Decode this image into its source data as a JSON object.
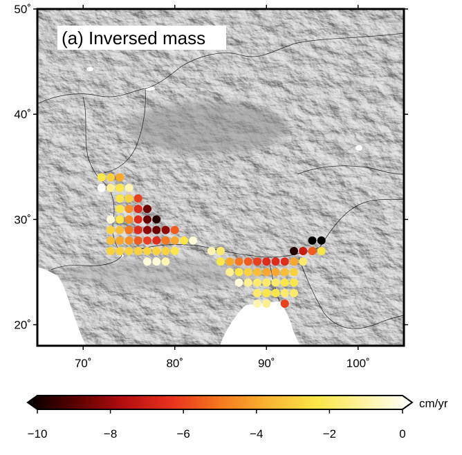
{
  "map": {
    "title": "(a) Inversed mass",
    "lon_range": [
      65,
      105
    ],
    "lat_range": [
      18,
      50
    ],
    "lon_ticks": [
      {
        "value": 70,
        "label": "70˚"
      },
      {
        "value": 80,
        "label": "80˚"
      },
      {
        "value": 90,
        "label": "90˚"
      },
      {
        "value": 100,
        "label": "100˚"
      }
    ],
    "lat_ticks": [
      {
        "value": 20,
        "label": "20˚"
      },
      {
        "value": 30,
        "label": "30˚"
      },
      {
        "value": 40,
        "label": "40˚"
      },
      {
        "value": 50,
        "label": "50˚"
      }
    ],
    "basemap": "shaded-relief-grayscale",
    "ocean_color": "#ffffff"
  },
  "colorbar": {
    "unit": "cm/yr",
    "min": -10,
    "max": 0,
    "ticks": [
      {
        "value": -10,
        "label": "−10"
      },
      {
        "value": -8,
        "label": "−8"
      },
      {
        "value": -6,
        "label": "−6"
      },
      {
        "value": -4,
        "label": "−4"
      },
      {
        "value": -2,
        "label": "−2"
      },
      {
        "value": 0,
        "label": "0"
      }
    ],
    "colors": [
      "#000000",
      "#5a0000",
      "#b40e0e",
      "#e8321e",
      "#f5781e",
      "#fab432",
      "#fae646",
      "#fff3a0",
      "#ffffff"
    ]
  },
  "chart_data": {
    "type": "scatter",
    "description_units": "lon, lat in degrees; value in cm/yr",
    "points": [
      {
        "lon": 72,
        "lat": 34,
        "v": -2.5
      },
      {
        "lon": 73,
        "lat": 34,
        "v": -3
      },
      {
        "lon": 74,
        "lat": 34,
        "v": -4
      },
      {
        "lon": 72,
        "lat": 33,
        "v": 0
      },
      {
        "lon": 73,
        "lat": 33,
        "v": -1.5
      },
      {
        "lon": 74,
        "lat": 33,
        "v": -2.5
      },
      {
        "lon": 75,
        "lat": 33,
        "v": -1
      },
      {
        "lon": 74,
        "lat": 32,
        "v": -2.5
      },
      {
        "lon": 75,
        "lat": 32,
        "v": -3
      },
      {
        "lon": 76,
        "lat": 32,
        "v": -6
      },
      {
        "lon": 74,
        "lat": 31,
        "v": -2.5
      },
      {
        "lon": 75,
        "lat": 31,
        "v": -4.5
      },
      {
        "lon": 76,
        "lat": 31,
        "v": -6.5
      },
      {
        "lon": 77,
        "lat": 31,
        "v": -8.5
      },
      {
        "lon": 73,
        "lat": 30,
        "v": -0.5
      },
      {
        "lon": 74,
        "lat": 30,
        "v": -2.5
      },
      {
        "lon": 75,
        "lat": 30,
        "v": -4.5
      },
      {
        "lon": 76,
        "lat": 30,
        "v": -6.5
      },
      {
        "lon": 77,
        "lat": 30,
        "v": -8.5
      },
      {
        "lon": 78,
        "lat": 30,
        "v": -9.5
      },
      {
        "lon": 73,
        "lat": 29,
        "v": -3
      },
      {
        "lon": 74,
        "lat": 29,
        "v": -3.5
      },
      {
        "lon": 75,
        "lat": 29,
        "v": -5
      },
      {
        "lon": 76,
        "lat": 29,
        "v": -6.5
      },
      {
        "lon": 77,
        "lat": 29,
        "v": -8
      },
      {
        "lon": 78,
        "lat": 29,
        "v": -8.5
      },
      {
        "lon": 79,
        "lat": 29,
        "v": -8
      },
      {
        "lon": 80,
        "lat": 29,
        "v": -5.5
      },
      {
        "lon": 73,
        "lat": 28,
        "v": -3.5
      },
      {
        "lon": 74,
        "lat": 28,
        "v": -4
      },
      {
        "lon": 75,
        "lat": 28,
        "v": -4.5
      },
      {
        "lon": 76,
        "lat": 28,
        "v": -5.5
      },
      {
        "lon": 77,
        "lat": 28,
        "v": -6
      },
      {
        "lon": 78,
        "lat": 28,
        "v": -6.5
      },
      {
        "lon": 79,
        "lat": 28,
        "v": -5
      },
      {
        "lon": 80,
        "lat": 28,
        "v": -4
      },
      {
        "lon": 81,
        "lat": 28,
        "v": -2.5
      },
      {
        "lon": 82,
        "lat": 28,
        "v": -0.5
      },
      {
        "lon": 73,
        "lat": 27,
        "v": -3
      },
      {
        "lon": 74,
        "lat": 27,
        "v": -3
      },
      {
        "lon": 75,
        "lat": 27,
        "v": -3
      },
      {
        "lon": 76,
        "lat": 27,
        "v": -3
      },
      {
        "lon": 77,
        "lat": 27,
        "v": -3
      },
      {
        "lon": 78,
        "lat": 27,
        "v": -3
      },
      {
        "lon": 79,
        "lat": 27,
        "v": -3
      },
      {
        "lon": 80,
        "lat": 27,
        "v": -2.5
      },
      {
        "lon": 77,
        "lat": 26,
        "v": -0.5
      },
      {
        "lon": 78,
        "lat": 26,
        "v": -0.5
      },
      {
        "lon": 79,
        "lat": 26,
        "v": -1
      },
      {
        "lon": 84,
        "lat": 27,
        "v": -1
      },
      {
        "lon": 85,
        "lat": 27,
        "v": -2
      },
      {
        "lon": 85,
        "lat": 26,
        "v": -2.5
      },
      {
        "lon": 86,
        "lat": 26,
        "v": -4
      },
      {
        "lon": 87,
        "lat": 26,
        "v": -5
      },
      {
        "lon": 88,
        "lat": 26,
        "v": -5.5
      },
      {
        "lon": 89,
        "lat": 26,
        "v": -6
      },
      {
        "lon": 90,
        "lat": 26,
        "v": -6.5
      },
      {
        "lon": 91,
        "lat": 26,
        "v": -6.5
      },
      {
        "lon": 92,
        "lat": 26,
        "v": -6.5
      },
      {
        "lon": 93,
        "lat": 26,
        "v": -4
      },
      {
        "lon": 94,
        "lat": 26,
        "v": -2
      },
      {
        "lon": 86,
        "lat": 25,
        "v": -1.5
      },
      {
        "lon": 87,
        "lat": 25,
        "v": -2.5
      },
      {
        "lon": 88,
        "lat": 25,
        "v": -3
      },
      {
        "lon": 89,
        "lat": 25,
        "v": -3.5
      },
      {
        "lon": 90,
        "lat": 25,
        "v": -4
      },
      {
        "lon": 91,
        "lat": 25,
        "v": -4
      },
      {
        "lon": 92,
        "lat": 25,
        "v": -3.5
      },
      {
        "lon": 93,
        "lat": 25,
        "v": -3
      },
      {
        "lon": 87,
        "lat": 24,
        "v": -0.5
      },
      {
        "lon": 88,
        "lat": 24,
        "v": -1.5
      },
      {
        "lon": 89,
        "lat": 24,
        "v": -2
      },
      {
        "lon": 90,
        "lat": 24,
        "v": -2
      },
      {
        "lon": 91,
        "lat": 24,
        "v": -2
      },
      {
        "lon": 92,
        "lat": 24,
        "v": -2.5
      },
      {
        "lon": 93,
        "lat": 24,
        "v": -2.5
      },
      {
        "lon": 89,
        "lat": 23,
        "v": -2
      },
      {
        "lon": 90,
        "lat": 23,
        "v": -2.5
      },
      {
        "lon": 91,
        "lat": 23,
        "v": -2.5
      },
      {
        "lon": 92,
        "lat": 23,
        "v": -2
      },
      {
        "lon": 93,
        "lat": 23,
        "v": -2
      },
      {
        "lon": 89,
        "lat": 22,
        "v": -1
      },
      {
        "lon": 90,
        "lat": 22,
        "v": -1.5
      },
      {
        "lon": 92,
        "lat": 22,
        "v": -6
      },
      {
        "lon": 93,
        "lat": 27,
        "v": -9.5
      },
      {
        "lon": 94,
        "lat": 27,
        "v": -7
      },
      {
        "lon": 95,
        "lat": 27,
        "v": -5.5
      },
      {
        "lon": 96,
        "lat": 27,
        "v": -2.5
      },
      {
        "lon": 95,
        "lat": 28,
        "v": -10
      },
      {
        "lon": 96,
        "lat": 28,
        "v": -10
      }
    ]
  }
}
